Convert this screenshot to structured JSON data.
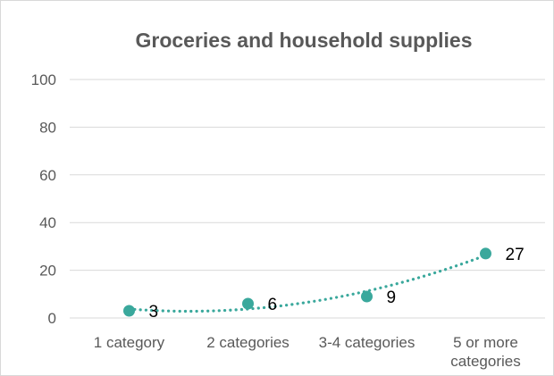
{
  "chart_data": {
    "type": "scatter",
    "title": "Groceries and household supplies",
    "xlabel": "",
    "ylabel": "",
    "categories": [
      "1 category",
      "2 categories",
      "3-4 categories",
      "5 or more categories"
    ],
    "category_lines": [
      [
        "1 category"
      ],
      [
        "2 categories"
      ],
      [
        "3-4 categories"
      ],
      [
        "5 or more",
        "categories"
      ]
    ],
    "values": [
      3,
      6,
      9,
      27
    ],
    "data_labels": [
      "3",
      "6",
      "9",
      "27"
    ],
    "yticks": [
      "0",
      "20",
      "40",
      "60",
      "80",
      "100"
    ],
    "ylim": [
      0,
      100
    ],
    "grid": true,
    "legend": "none",
    "trendline": "polynomial",
    "marker_color": "#3aa89c",
    "trendline_color": "#3aa89c"
  }
}
